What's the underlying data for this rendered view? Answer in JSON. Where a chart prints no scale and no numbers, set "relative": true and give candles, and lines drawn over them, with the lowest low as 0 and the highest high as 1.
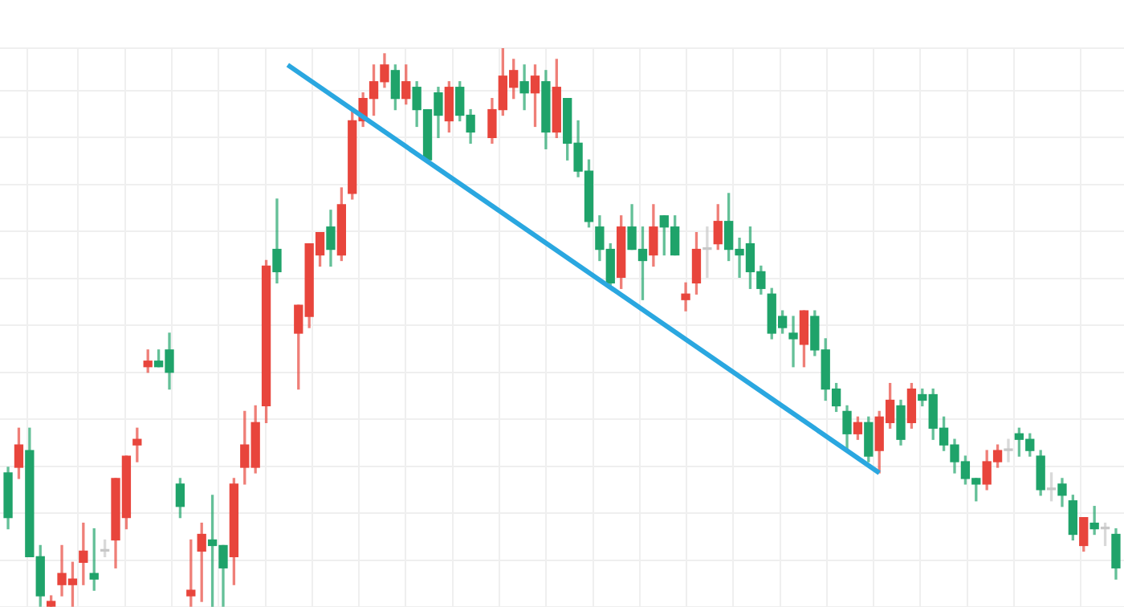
{
  "chart_data": {
    "type": "candlestick",
    "relative": true,
    "grid": true,
    "tick_labels": false,
    "categories": [
      null,
      null,
      null,
      null,
      null,
      null,
      null,
      null,
      null,
      null,
      null,
      null,
      null,
      null,
      null,
      null,
      null,
      null,
      null,
      null,
      null,
      null,
      null,
      null,
      null,
      null,
      null,
      null,
      null,
      null,
      null,
      null,
      null,
      null,
      null,
      null,
      null,
      null,
      null,
      null,
      null,
      null,
      null,
      null,
      null,
      null,
      null,
      null,
      null,
      null,
      null,
      null,
      null,
      null,
      null,
      null,
      null,
      null,
      null,
      null,
      null,
      null,
      null,
      null,
      null,
      null,
      null,
      null,
      null,
      null,
      null,
      null,
      null,
      null,
      null,
      null,
      null,
      null,
      null,
      null,
      null,
      null,
      null,
      null,
      null,
      null,
      null,
      null,
      null,
      null,
      null,
      null,
      null,
      null,
      null,
      null,
      null,
      null,
      null,
      null,
      null,
      null,
      null,
      null
    ],
    "ohlc": [
      [
        0.24,
        0.25,
        0.14,
        0.16
      ],
      [
        0.25,
        0.32,
        0.23,
        0.29
      ],
      [
        0.28,
        0.32,
        0.09,
        0.09
      ],
      [
        0.09,
        0.11,
        0,
        0.02
      ],
      [
        0,
        0.02,
        0,
        0.01
      ],
      [
        0.04,
        0.11,
        0.02,
        0.06
      ],
      [
        0.04,
        0.08,
        0,
        0.05
      ],
      [
        0.08,
        0.15,
        0.04,
        0.1
      ],
      [
        0.06,
        0.14,
        0.03,
        0.05
      ],
      [
        0.1,
        0.12,
        0.09,
        0.1
      ],
      [
        0.12,
        0.23,
        0.07,
        0.23
      ],
      [
        0.16,
        0.27,
        0.14,
        0.27
      ],
      [
        0.29,
        0.32,
        0.26,
        0.3
      ],
      [
        0.43,
        0.46,
        0.42,
        0.44
      ],
      [
        0.44,
        0.46,
        0.43,
        0.43
      ],
      [
        0.46,
        0.49,
        0.39,
        0.42
      ],
      [
        0.22,
        0.23,
        0.16,
        0.18
      ],
      [
        0.02,
        0.12,
        0,
        0.03
      ],
      [
        0.1,
        0.15,
        0.01,
        0.13
      ],
      [
        0.12,
        0.2,
        0,
        0.11
      ],
      [
        0.11,
        0.11,
        0,
        0.07
      ],
      [
        0.09,
        0.23,
        0.04,
        0.22
      ],
      [
        0.25,
        0.35,
        0.22,
        0.29
      ],
      [
        0.25,
        0.36,
        0.24,
        0.33
      ],
      [
        0.36,
        0.62,
        0.33,
        0.61
      ],
      [
        0.64,
        0.73,
        0.58,
        0.6
      ],
      null,
      [
        0.49,
        0.54,
        0.39,
        0.54
      ],
      [
        0.52,
        0.65,
        0.5,
        0.65
      ],
      [
        0.63,
        0.67,
        0.61,
        0.67
      ],
      [
        0.68,
        0.71,
        0.61,
        0.64
      ],
      [
        0.63,
        0.75,
        0.62,
        0.72
      ],
      [
        0.74,
        0.89,
        0.73,
        0.87
      ],
      [
        0.87,
        0.92,
        0.86,
        0.91
      ],
      [
        0.91,
        0.97,
        0.88,
        0.94
      ],
      [
        0.94,
        0.99,
        0.93,
        0.97
      ],
      [
        0.96,
        0.97,
        0.89,
        0.91
      ],
      [
        0.91,
        0.97,
        0.9,
        0.94
      ],
      [
        0.93,
        0.94,
        0.86,
        0.89
      ],
      [
        0.89,
        0.89,
        0.8,
        0.8
      ],
      [
        0.92,
        0.93,
        0.84,
        0.88
      ],
      [
        0.87,
        0.94,
        0.85,
        0.93
      ],
      [
        0.93,
        0.94,
        0.87,
        0.88
      ],
      [
        0.88,
        0.89,
        0.83,
        0.85
      ],
      null,
      [
        0.84,
        0.91,
        0.83,
        0.89
      ],
      [
        0.89,
        1,
        0.88,
        0.95
      ],
      [
        0.93,
        0.98,
        0.91,
        0.96
      ],
      [
        0.94,
        0.97,
        0.89,
        0.92
      ],
      [
        0.92,
        0.97,
        0.86,
        0.95
      ],
      [
        0.94,
        0.96,
        0.82,
        0.85
      ],
      [
        0.85,
        0.98,
        0.84,
        0.93
      ],
      [
        0.91,
        0.91,
        0.8,
        0.83
      ],
      [
        0.83,
        0.87,
        0.77,
        0.78
      ],
      [
        0.78,
        0.8,
        0.68,
        0.69
      ],
      [
        0.68,
        0.7,
        0.62,
        0.64
      ],
      [
        0.64,
        0.65,
        0.57,
        0.58
      ],
      [
        0.59,
        0.7,
        0.57,
        0.68
      ],
      [
        0.68,
        0.72,
        0.64,
        0.64
      ],
      [
        0.64,
        0.68,
        0.55,
        0.62
      ],
      [
        0.63,
        0.72,
        0.61,
        0.68
      ],
      [
        0.7,
        0.7,
        0.63,
        0.68
      ],
      [
        0.68,
        0.7,
        0.63,
        0.63
      ],
      [
        0.55,
        0.58,
        0.53,
        0.56
      ],
      [
        0.58,
        0.67,
        0.56,
        0.64
      ],
      [
        0.64,
        0.68,
        0.59,
        0.64
      ],
      [
        0.65,
        0.72,
        0.64,
        0.69
      ],
      [
        0.69,
        0.74,
        0.62,
        0.64
      ],
      [
        0.64,
        0.66,
        0.59,
        0.63
      ],
      [
        0.65,
        0.68,
        0.57,
        0.6
      ],
      [
        0.6,
        0.61,
        0.56,
        0.57
      ],
      [
        0.56,
        0.57,
        0.48,
        0.49
      ],
      [
        0.52,
        0.53,
        0.49,
        0.5
      ],
      [
        0.49,
        0.52,
        0.43,
        0.48
      ],
      [
        0.47,
        0.53,
        0.43,
        0.53
      ],
      [
        0.52,
        0.53,
        0.45,
        0.46
      ],
      [
        0.46,
        0.48,
        0.37,
        0.39
      ],
      [
        0.39,
        0.4,
        0.35,
        0.36
      ],
      [
        0.35,
        0.36,
        0.28,
        0.31
      ],
      [
        0.31,
        0.34,
        0.3,
        0.33
      ],
      [
        0.33,
        0.34,
        0.26,
        0.27
      ],
      [
        0.28,
        0.35,
        0.24,
        0.34
      ],
      [
        0.33,
        0.4,
        0.32,
        0.37
      ],
      [
        0.36,
        0.37,
        0.29,
        0.3
      ],
      [
        0.33,
        0.4,
        0.32,
        0.39
      ],
      [
        0.38,
        0.39,
        0.36,
        0.37
      ],
      [
        0.38,
        0.39,
        0.3,
        0.32
      ],
      [
        0.32,
        0.34,
        0.28,
        0.29
      ],
      [
        0.29,
        0.3,
        0.24,
        0.26
      ],
      [
        0.26,
        0.27,
        0.22,
        0.23
      ],
      [
        0.23,
        0.23,
        0.19,
        0.22
      ],
      [
        0.22,
        0.28,
        0.21,
        0.26
      ],
      [
        0.26,
        0.29,
        0.25,
        0.28
      ],
      [
        0.28,
        0.3,
        0.26,
        0.28
      ],
      [
        0.31,
        0.32,
        0.27,
        0.3
      ],
      [
        0.3,
        0.31,
        0.27,
        0.28
      ],
      [
        0.27,
        0.28,
        0.2,
        0.21
      ],
      [
        0.21,
        0.24,
        0.19,
        0.21
      ],
      [
        0.22,
        0.23,
        0.18,
        0.2
      ],
      [
        0.19,
        0.2,
        0.12,
        0.13
      ],
      [
        0.11,
        0.16,
        0.1,
        0.16
      ],
      [
        0.15,
        0.18,
        0.13,
        0.14
      ],
      [
        0.14,
        0.15,
        0.11,
        0.14
      ],
      [
        0.13,
        0.14,
        0.05,
        0.07
      ]
    ],
    "colors": [
      "#1fa36a",
      "#e8453c",
      "#1fa36a",
      "#1fa36a",
      "#e8453c",
      "#e8453c",
      "#e8453c",
      "#e8453c",
      "#1fa36a",
      "#c8c8c8",
      "#e8453c",
      "#e8453c",
      "#e8453c",
      "#e8453c",
      "#1fa36a",
      "#1fa36a",
      "#1fa36a",
      "#e8453c",
      "#e8453c",
      "#1fa36a",
      "#1fa36a",
      "#e8453c",
      "#e8453c",
      "#e8453c",
      "#e8453c",
      "#1fa36a",
      null,
      "#e8453c",
      "#e8453c",
      "#e8453c",
      "#1fa36a",
      "#e8453c",
      "#e8453c",
      "#e8453c",
      "#e8453c",
      "#e8453c",
      "#1fa36a",
      "#e8453c",
      "#1fa36a",
      "#1fa36a",
      "#1fa36a",
      "#e8453c",
      "#1fa36a",
      "#1fa36a",
      null,
      "#e8453c",
      "#e8453c",
      "#e8453c",
      "#1fa36a",
      "#e8453c",
      "#1fa36a",
      "#e8453c",
      "#1fa36a",
      "#1fa36a",
      "#1fa36a",
      "#1fa36a",
      "#1fa36a",
      "#e8453c",
      "#1fa36a",
      "#1fa36a",
      "#e8453c",
      "#1fa36a",
      "#1fa36a",
      "#e8453c",
      "#e8453c",
      "#c8c8c8",
      "#e8453c",
      "#1fa36a",
      "#1fa36a",
      "#1fa36a",
      "#1fa36a",
      "#1fa36a",
      "#1fa36a",
      "#1fa36a",
      "#e8453c",
      "#1fa36a",
      "#1fa36a",
      "#1fa36a",
      "#1fa36a",
      "#e8453c",
      "#1fa36a",
      "#e8453c",
      "#e8453c",
      "#1fa36a",
      "#e8453c",
      "#1fa36a",
      "#1fa36a",
      "#1fa36a",
      "#1fa36a",
      "#1fa36a",
      "#1fa36a",
      "#e8453c",
      "#e8453c",
      "#c8c8c8",
      "#1fa36a",
      "#1fa36a",
      "#1fa36a",
      "#c8c8c8",
      "#1fa36a",
      "#1fa36a",
      "#e8453c",
      "#1fa36a",
      "#c8c8c8",
      "#1fa36a"
    ],
    "series": [
      {
        "type": "line",
        "color": "#2aa7e0",
        "values": [
          null,
          null,
          null,
          null,
          null,
          null,
          null,
          null,
          null,
          null,
          null,
          null,
          null,
          null,
          null,
          null,
          null,
          null,
          null,
          null,
          null,
          null,
          null,
          null,
          null,
          null,
          0.97,
          null,
          null,
          null,
          null,
          null,
          null,
          null,
          null,
          null,
          null,
          null,
          null,
          null,
          null,
          null,
          null,
          null,
          null,
          null,
          null,
          null,
          null,
          null,
          null,
          null,
          null,
          null,
          null,
          null,
          null,
          null,
          null,
          null,
          null,
          null,
          null,
          null,
          null,
          null,
          null,
          null,
          null,
          null,
          null,
          null,
          null,
          null,
          null,
          null,
          null,
          null,
          null,
          null,
          null,
          0.24,
          null,
          null,
          null,
          null,
          null,
          null,
          null,
          null,
          null,
          null,
          null,
          null,
          null,
          null,
          null,
          null,
          null,
          null,
          null,
          null,
          null,
          null
        ]
      }
    ]
  }
}
